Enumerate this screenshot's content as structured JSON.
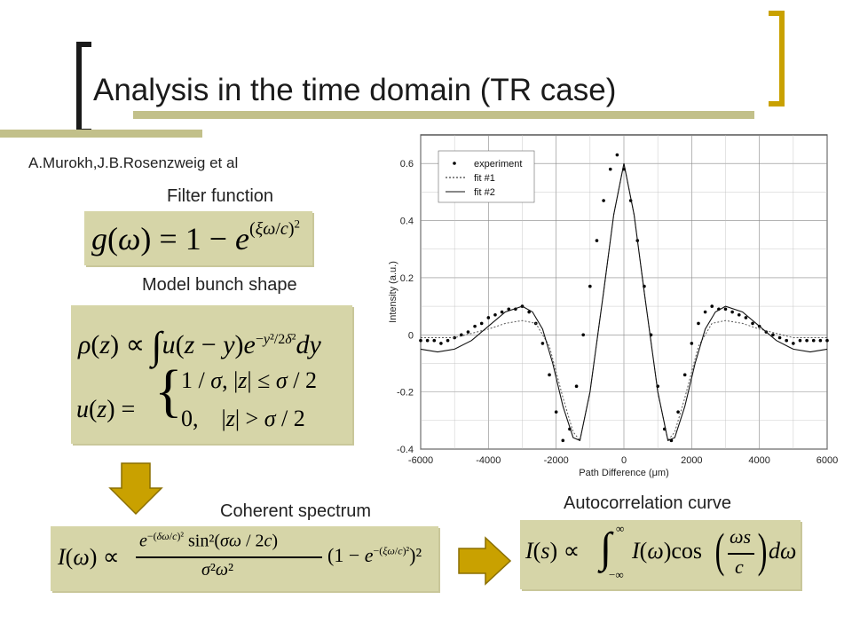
{
  "slide": {
    "title": "Analysis in the time domain (TR case)",
    "author": "A.Murokh,J.B.Rosenzweig et al",
    "filter_label": "Filter function",
    "model_label": "Model bunch shape",
    "coherent_label": "Coherent spectrum",
    "autocorr_label": "Autocorrelation curve",
    "colors": {
      "accent_gold": "#c9a100",
      "accent_olive": "#c2c08a",
      "formula_bg": "#d6d5a8"
    }
  },
  "formulas": {
    "filter": "g(ω) = 1 − e^{(ξω/c)²}",
    "rho": "ρ(z) ∝ ∫ u(z−y) e^{−y²/2δ²} dy",
    "u": "u(z) = { 1/σ, |z| ≤ σ/2 ; 0, |z| > σ/2 }",
    "spectrum": "I(ω) ∝ e^{−(δω/c)²} sin²(σω/2c) / σ²ω² · (1 − e^{−(ξω/c)²})²",
    "autocorr": "I(s) ∝ ∫_{−∞}^{∞} I(ω) cos(ωs/c) dω"
  },
  "chart_data": {
    "type": "scatter",
    "title": "",
    "xlabel": "Path Difference (μm)",
    "ylabel": "Intensity (a.u.)",
    "xlim": [
      -6000,
      6000
    ],
    "ylim": [
      -0.4,
      0.7
    ],
    "xticks": [
      -6000,
      -4000,
      -2000,
      0,
      2000,
      4000,
      6000
    ],
    "yticks": [
      -0.4,
      -0.2,
      0,
      0.2,
      0.4,
      0.6
    ],
    "ytick_labels": [
      "-0.4",
      "-0.2",
      "0",
      "0.2",
      "0.4",
      "0.6"
    ],
    "grid": true,
    "legend_position": "top-left",
    "series": [
      {
        "name": "experiment",
        "style": "points",
        "x": [
          -6000,
          -5800,
          -5600,
          -5400,
          -5200,
          -5000,
          -4800,
          -4600,
          -4400,
          -4200,
          -4000,
          -3800,
          -3600,
          -3400,
          -3200,
          -3000,
          -2800,
          -2600,
          -2400,
          -2200,
          -2000,
          -1800,
          -1600,
          -1400,
          -1200,
          -1000,
          -800,
          -600,
          -400,
          -200,
          0,
          200,
          400,
          600,
          800,
          1000,
          1200,
          1400,
          1600,
          1800,
          2000,
          2200,
          2400,
          2600,
          2800,
          3000,
          3200,
          3400,
          3600,
          3800,
          4000,
          4200,
          4400,
          4600,
          4800,
          5000,
          5200,
          5400,
          5600,
          5800,
          6000
        ],
        "y": [
          -0.02,
          -0.02,
          -0.02,
          -0.03,
          -0.02,
          -0.01,
          0.0,
          0.01,
          0.03,
          0.04,
          0.06,
          0.07,
          0.08,
          0.09,
          0.09,
          0.1,
          0.08,
          0.04,
          -0.03,
          -0.14,
          -0.27,
          -0.37,
          -0.33,
          -0.18,
          0.0,
          0.17,
          0.33,
          0.47,
          0.58,
          0.63,
          0.58,
          0.47,
          0.33,
          0.17,
          0.0,
          -0.18,
          -0.33,
          -0.37,
          -0.27,
          -0.14,
          -0.03,
          0.04,
          0.08,
          0.1,
          0.09,
          0.09,
          0.08,
          0.07,
          0.06,
          0.04,
          0.03,
          0.01,
          0.0,
          -0.01,
          -0.02,
          -0.03,
          -0.02,
          -0.02,
          -0.02,
          -0.02,
          -0.02
        ]
      },
      {
        "name": "fit #1",
        "style": "dotted",
        "x": [
          -6000,
          -5000,
          -4000,
          -3500,
          -3000,
          -2600,
          -2200,
          -1800,
          -1500,
          -1300,
          -1000,
          -600,
          -300,
          0,
          300,
          600,
          1000,
          1300,
          1500,
          1800,
          2200,
          2600,
          3000,
          3500,
          4000,
          5000,
          6000
        ],
        "y": [
          -0.01,
          -0.01,
          0.02,
          0.04,
          0.05,
          0.04,
          -0.04,
          -0.22,
          -0.34,
          -0.37,
          -0.2,
          0.15,
          0.42,
          0.6,
          0.42,
          0.15,
          -0.2,
          -0.37,
          -0.34,
          -0.22,
          -0.04,
          0.04,
          0.05,
          0.04,
          0.02,
          -0.01,
          -0.01
        ]
      },
      {
        "name": "fit #2",
        "style": "solid",
        "x": [
          -6000,
          -5500,
          -5000,
          -4500,
          -4000,
          -3500,
          -3000,
          -2700,
          -2400,
          -2100,
          -1800,
          -1500,
          -1300,
          -1000,
          -600,
          -300,
          0,
          300,
          600,
          1000,
          1300,
          1500,
          1800,
          2100,
          2400,
          2700,
          3000,
          3500,
          4000,
          4500,
          5000,
          5500,
          6000
        ],
        "y": [
          -0.05,
          -0.06,
          -0.05,
          -0.02,
          0.03,
          0.08,
          0.1,
          0.08,
          0.02,
          -0.1,
          -0.25,
          -0.36,
          -0.37,
          -0.2,
          0.15,
          0.42,
          0.6,
          0.42,
          0.15,
          -0.2,
          -0.37,
          -0.36,
          -0.25,
          -0.1,
          0.02,
          0.08,
          0.1,
          0.08,
          0.03,
          -0.02,
          -0.05,
          -0.06,
          -0.05
        ]
      }
    ]
  }
}
